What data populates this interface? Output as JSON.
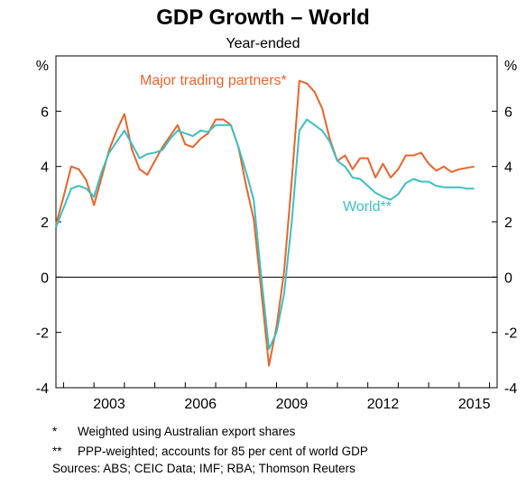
{
  "chart_data": {
    "type": "line",
    "title": "GDP Growth – World",
    "subtitle": "Year-ended",
    "ylabel_left": "%",
    "ylabel_right": "%",
    "ylim": [
      -4,
      8
    ],
    "yticks": [
      -4,
      -2,
      0,
      2,
      4,
      6
    ],
    "xlim": [
      2001.75,
      2016.25
    ],
    "xticks": [
      2003,
      2006,
      2009,
      2012,
      2015
    ],
    "x_tick_labels": [
      "2003",
      "2006",
      "2009",
      "2012",
      "2015"
    ],
    "grid": false,
    "series": [
      {
        "name": "Major trading partners*",
        "color": "#e8642c",
        "x": [
          2001.75,
          2002.0,
          2002.25,
          2002.5,
          2002.75,
          2003.0,
          2003.25,
          2003.5,
          2003.75,
          2004.0,
          2004.25,
          2004.5,
          2004.75,
          2005.0,
          2005.25,
          2005.5,
          2005.75,
          2006.0,
          2006.25,
          2006.5,
          2006.75,
          2007.0,
          2007.25,
          2007.5,
          2007.75,
          2008.0,
          2008.25,
          2008.5,
          2008.75,
          2009.0,
          2009.25,
          2009.5,
          2009.75,
          2010.0,
          2010.25,
          2010.5,
          2010.75,
          2011.0,
          2011.25,
          2011.5,
          2011.75,
          2012.0,
          2012.25,
          2012.5,
          2012.75,
          2013.0,
          2013.25,
          2013.5,
          2013.75,
          2014.0,
          2014.25,
          2014.5,
          2014.75,
          2015.0,
          2015.25,
          2015.5
        ],
        "values": [
          1.9,
          2.9,
          4.0,
          3.9,
          3.5,
          2.6,
          3.6,
          4.6,
          5.3,
          5.9,
          4.6,
          3.9,
          3.7,
          4.2,
          4.7,
          5.1,
          5.5,
          4.8,
          4.7,
          5.0,
          5.2,
          5.7,
          5.7,
          5.5,
          4.7,
          3.3,
          2.1,
          -0.5,
          -3.2,
          -1.8,
          0.2,
          3.5,
          7.1,
          7.0,
          6.7,
          6.1,
          5.0,
          4.2,
          4.4,
          3.9,
          4.3,
          4.3,
          3.6,
          4.1,
          3.6,
          3.9,
          4.4,
          4.4,
          4.5,
          4.1,
          3.85,
          4.0,
          3.8,
          3.9,
          3.95,
          4.0
        ]
      },
      {
        "name": "World**",
        "color": "#3cbfc1",
        "x": [
          2001.75,
          2002.0,
          2002.25,
          2002.5,
          2002.75,
          2003.0,
          2003.25,
          2003.5,
          2003.75,
          2004.0,
          2004.25,
          2004.5,
          2004.75,
          2005.0,
          2005.25,
          2005.5,
          2005.75,
          2006.0,
          2006.25,
          2006.5,
          2006.75,
          2007.0,
          2007.25,
          2007.5,
          2007.75,
          2008.0,
          2008.25,
          2008.5,
          2008.75,
          2009.0,
          2009.25,
          2009.5,
          2009.75,
          2010.0,
          2010.25,
          2010.5,
          2010.75,
          2011.0,
          2011.25,
          2011.5,
          2011.75,
          2012.0,
          2012.25,
          2012.5,
          2012.75,
          2013.0,
          2013.25,
          2013.5,
          2013.75,
          2014.0,
          2014.25,
          2014.5,
          2014.75,
          2015.0,
          2015.25,
          2015.5
        ],
        "values": [
          1.8,
          2.5,
          3.2,
          3.3,
          3.2,
          2.9,
          3.8,
          4.5,
          4.9,
          5.3,
          4.8,
          4.3,
          4.45,
          4.5,
          4.6,
          5.0,
          5.3,
          5.2,
          5.1,
          5.3,
          5.25,
          5.5,
          5.5,
          5.5,
          4.7,
          3.8,
          2.8,
          0.0,
          -2.6,
          -2.0,
          -0.6,
          2.0,
          5.3,
          5.7,
          5.5,
          5.3,
          4.9,
          4.2,
          4.0,
          3.6,
          3.55,
          3.3,
          3.05,
          2.9,
          2.8,
          3.0,
          3.4,
          3.55,
          3.45,
          3.45,
          3.3,
          3.25,
          3.25,
          3.25,
          3.2,
          3.2
        ]
      }
    ],
    "annotations": {
      "major_label": "Major trading partners*",
      "world_label": "World**"
    }
  },
  "notes": [
    {
      "mark": "*",
      "text": "Weighted using Australian export shares"
    },
    {
      "mark": "**",
      "text": "PPP-weighted; accounts for 85 per cent of world GDP"
    }
  ],
  "sources": "Sources:  ABS; CEIC Data; IMF; RBA; Thomson Reuters"
}
